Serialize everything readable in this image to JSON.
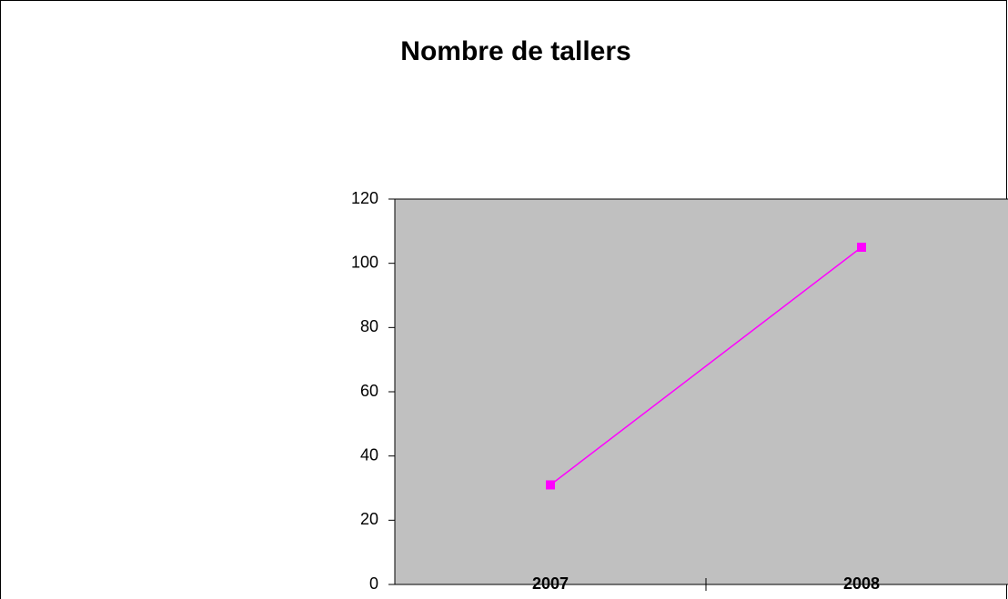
{
  "chart_data": {
    "type": "line",
    "title": "Nombre de tallers",
    "categories": [
      "2007",
      "2008"
    ],
    "series": [
      {
        "name": "Nombre de tallers",
        "color": "#ff00ff",
        "values": [
          31,
          105
        ]
      }
    ],
    "ylim": [
      0,
      120
    ],
    "yticks": [
      0,
      20,
      40,
      60,
      80,
      100,
      120
    ],
    "grid": false,
    "plot_background": "#c0c0c0"
  }
}
